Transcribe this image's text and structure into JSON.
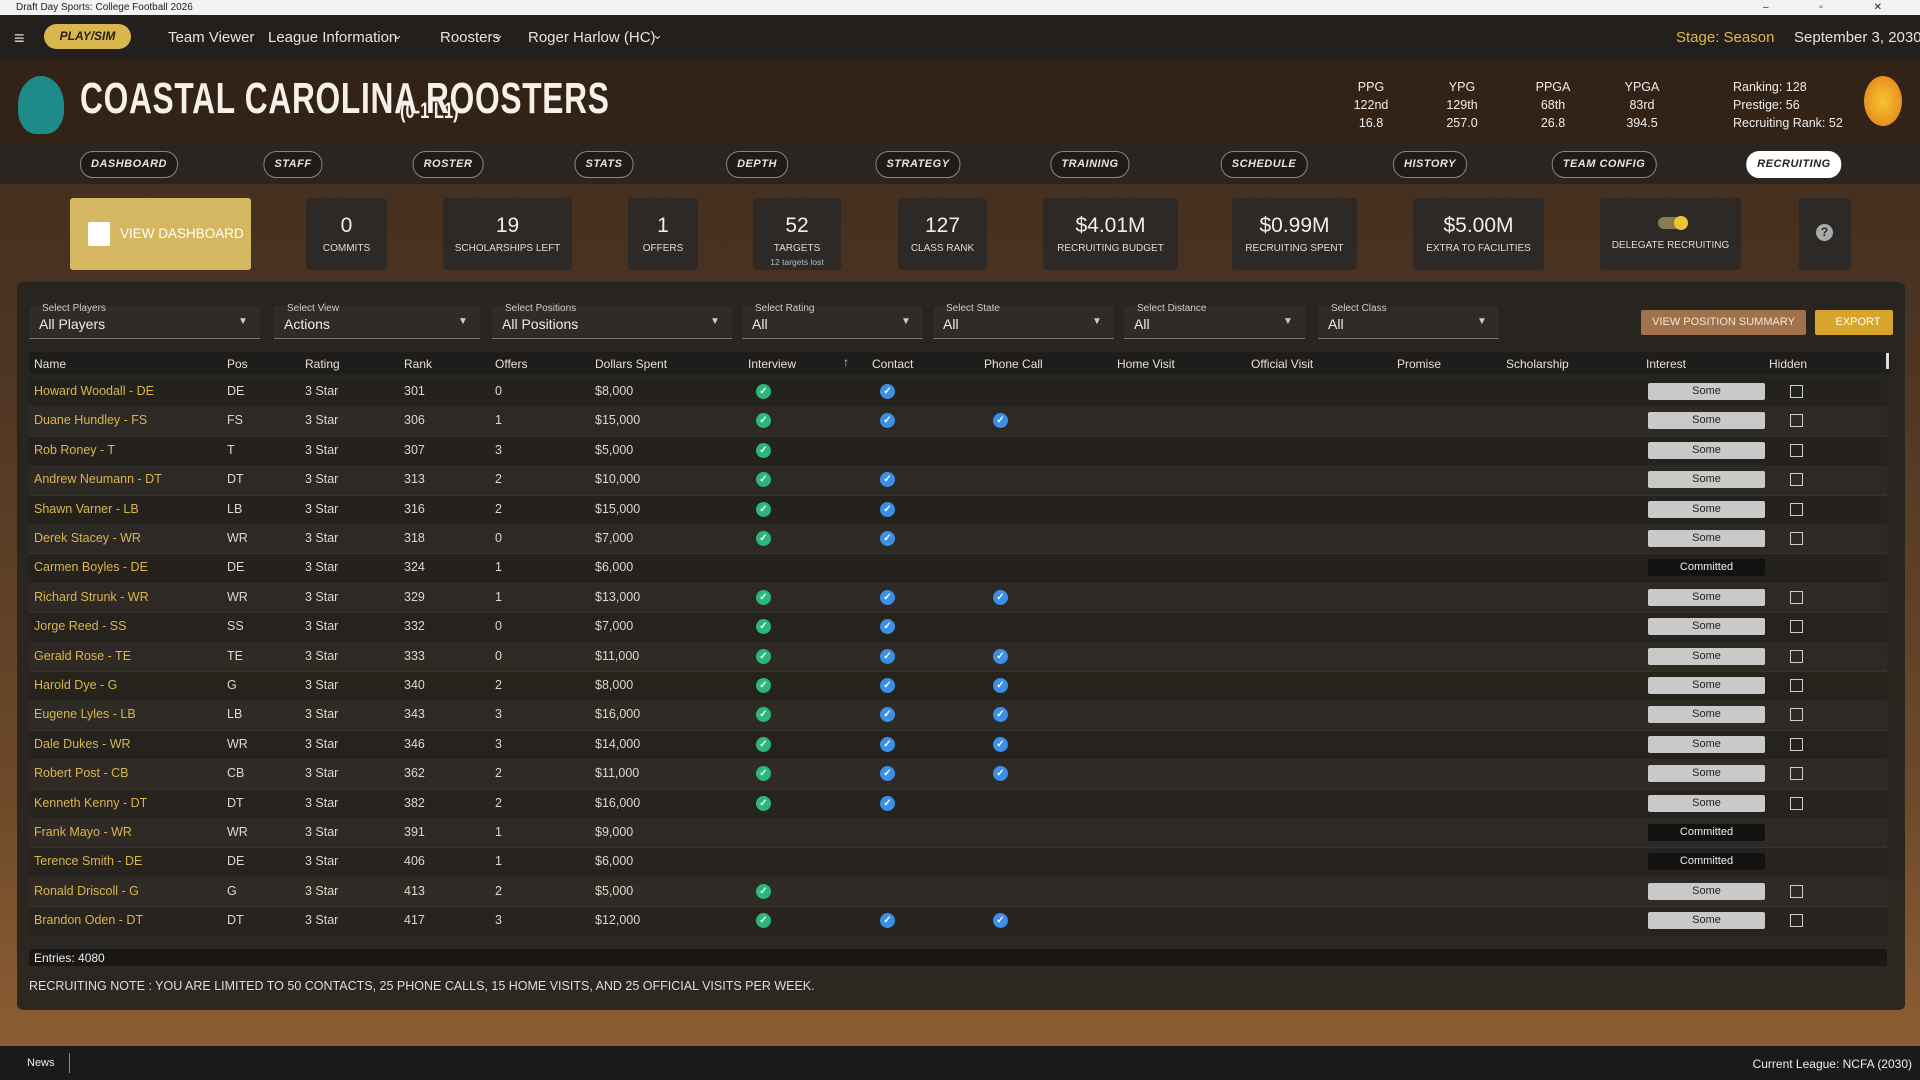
{
  "window_title": "Draft Day Sports: College Football 2026",
  "menu": {
    "play_sim": "PLAY/SIM",
    "items": [
      "Team Viewer",
      "League Information",
      "Roosters",
      "Roger Harlow (HC)"
    ],
    "stage": "Stage: Season",
    "date": "September 3, 2030"
  },
  "team": {
    "name": "COASTAL CAROLINA ROOSTERS",
    "record": "(0-1 L1)"
  },
  "team_stats": [
    {
      "label": "PPG",
      "rank": "122nd",
      "value": "16.8"
    },
    {
      "label": "YPG",
      "rank": "129th",
      "value": "257.0"
    },
    {
      "label": "PPGA",
      "rank": "68th",
      "value": "26.8"
    },
    {
      "label": "YPGA",
      "rank": "83rd",
      "value": "394.5"
    }
  ],
  "ranking": [
    "Ranking: 128",
    "Prestige: 56",
    "Recruiting Rank: 52"
  ],
  "tabs": [
    "DASHBOARD",
    "STAFF",
    "ROSTER",
    "STATS",
    "DEPTH",
    "STRATEGY",
    "TRAINING",
    "SCHEDULE",
    "HISTORY",
    "TEAM CONFIG",
    "RECRUITING"
  ],
  "view_dashboard": "VIEW DASHBOARD",
  "cards": [
    {
      "value": "0",
      "label": "COMMITS"
    },
    {
      "value": "19",
      "label": "SCHOLARSHIPS LEFT"
    },
    {
      "value": "1",
      "label": "OFFERS"
    },
    {
      "value": "52",
      "label": "TARGETS",
      "note": "12 targets lost"
    },
    {
      "value": "127",
      "label": "CLASS RANK"
    },
    {
      "value": "$4.01M",
      "label": "RECRUITING BUDGET"
    },
    {
      "value": "$0.99M",
      "label": "RECRUITING SPENT"
    },
    {
      "value": "$5.00M",
      "label": "EXTRA TO FACILITIES"
    }
  ],
  "delegate": "DELEGATE RECRUITING",
  "filters": [
    {
      "label": "Select Players",
      "value": "All Players"
    },
    {
      "label": "Select View",
      "value": "Actions"
    },
    {
      "label": "Select Positions",
      "value": "All Positions"
    },
    {
      "label": "Select Rating",
      "value": "All"
    },
    {
      "label": "Select State",
      "value": "All"
    },
    {
      "label": "Select Distance",
      "value": "All"
    },
    {
      "label": "Select Class",
      "value": "All"
    }
  ],
  "buttons": [
    "VIEW POSITION SUMMARY",
    "EXPORT"
  ],
  "columns": [
    "Name",
    "Pos",
    "Rating",
    "Rank",
    "Offers",
    "Dollars Spent",
    "Interview",
    "Contact",
    "Phone Call",
    "Home Visit",
    "Official Visit",
    "Promise",
    "Scholarship",
    "Interest",
    "Hidden"
  ],
  "rows": [
    {
      "name": "Howard Woodall - DE",
      "pos": "DE",
      "rating": "3 Star",
      "rank": 301,
      "offers": 0,
      "dollars": "$8,000",
      "interview": true,
      "contact": true,
      "phone": false,
      "interest": "Some",
      "hidden": false
    },
    {
      "name": "Duane Hundley - FS",
      "pos": "FS",
      "rating": "3 Star",
      "rank": 306,
      "offers": 1,
      "dollars": "$15,000",
      "interview": true,
      "contact": true,
      "phone": true,
      "interest": "Some",
      "hidden": false
    },
    {
      "name": "Rob Roney - T",
      "pos": "T",
      "rating": "3 Star",
      "rank": 307,
      "offers": 3,
      "dollars": "$5,000",
      "interview": true,
      "contact": false,
      "phone": false,
      "interest": "Some",
      "hidden": false
    },
    {
      "name": "Andrew Neumann - DT",
      "pos": "DT",
      "rating": "3 Star",
      "rank": 313,
      "offers": 2,
      "dollars": "$10,000",
      "interview": true,
      "contact": true,
      "phone": false,
      "interest": "Some",
      "hidden": false
    },
    {
      "name": "Shawn Varner - LB",
      "pos": "LB",
      "rating": "3 Star",
      "rank": 316,
      "offers": 2,
      "dollars": "$15,000",
      "interview": true,
      "contact": true,
      "phone": false,
      "interest": "Some",
      "hidden": false
    },
    {
      "name": "Derek Stacey - WR",
      "pos": "WR",
      "rating": "3 Star",
      "rank": 318,
      "offers": 0,
      "dollars": "$7,000",
      "interview": true,
      "contact": true,
      "phone": false,
      "interest": "Some",
      "hidden": false
    },
    {
      "name": "Carmen Boyles - DE",
      "pos": "DE",
      "rating": "3 Star",
      "rank": 324,
      "offers": 1,
      "dollars": "$6,000",
      "interview": false,
      "contact": false,
      "phone": false,
      "interest": "Committed",
      "hidden": null
    },
    {
      "name": "Richard Strunk - WR",
      "pos": "WR",
      "rating": "3 Star",
      "rank": 329,
      "offers": 1,
      "dollars": "$13,000",
      "interview": true,
      "contact": true,
      "phone": true,
      "interest": "Some",
      "hidden": false
    },
    {
      "name": "Jorge Reed - SS",
      "pos": "SS",
      "rating": "3 Star",
      "rank": 332,
      "offers": 0,
      "dollars": "$7,000",
      "interview": true,
      "contact": true,
      "phone": false,
      "interest": "Some",
      "hidden": false
    },
    {
      "name": "Gerald Rose - TE",
      "pos": "TE",
      "rating": "3 Star",
      "rank": 333,
      "offers": 0,
      "dollars": "$11,000",
      "interview": true,
      "contact": true,
      "phone": true,
      "interest": "Some",
      "hidden": false
    },
    {
      "name": "Harold Dye - G",
      "pos": "G",
      "rating": "3 Star",
      "rank": 340,
      "offers": 2,
      "dollars": "$8,000",
      "interview": true,
      "contact": true,
      "phone": true,
      "interest": "Some",
      "hidden": false
    },
    {
      "name": "Eugene Lyles - LB",
      "pos": "LB",
      "rating": "3 Star",
      "rank": 343,
      "offers": 3,
      "dollars": "$16,000",
      "interview": true,
      "contact": true,
      "phone": true,
      "interest": "Some",
      "hidden": false
    },
    {
      "name": "Dale Dukes - WR",
      "pos": "WR",
      "rating": "3 Star",
      "rank": 346,
      "offers": 3,
      "dollars": "$14,000",
      "interview": true,
      "contact": true,
      "phone": true,
      "interest": "Some",
      "hidden": false
    },
    {
      "name": "Robert Post - CB",
      "pos": "CB",
      "rating": "3 Star",
      "rank": 362,
      "offers": 2,
      "dollars": "$11,000",
      "interview": true,
      "contact": true,
      "phone": true,
      "interest": "Some",
      "hidden": false
    },
    {
      "name": "Kenneth Kenny - DT",
      "pos": "DT",
      "rating": "3 Star",
      "rank": 382,
      "offers": 2,
      "dollars": "$16,000",
      "interview": true,
      "contact": true,
      "phone": false,
      "interest": "Some",
      "hidden": false
    },
    {
      "name": "Frank Mayo - WR",
      "pos": "WR",
      "rating": "3 Star",
      "rank": 391,
      "offers": 1,
      "dollars": "$9,000",
      "interview": false,
      "contact": false,
      "phone": false,
      "interest": "Committed",
      "hidden": null
    },
    {
      "name": "Terence Smith - DE",
      "pos": "DE",
      "rating": "3 Star",
      "rank": 406,
      "offers": 1,
      "dollars": "$6,000",
      "interview": false,
      "contact": false,
      "phone": false,
      "interest": "Committed",
      "hidden": null
    },
    {
      "name": "Ronald Driscoll - G",
      "pos": "G",
      "rating": "3 Star",
      "rank": 413,
      "offers": 2,
      "dollars": "$5,000",
      "interview": true,
      "contact": false,
      "phone": false,
      "interest": "Some",
      "hidden": false
    },
    {
      "name": "Brandon Oden - DT",
      "pos": "DT",
      "rating": "3 Star",
      "rank": 417,
      "offers": 3,
      "dollars": "$12,000",
      "interview": true,
      "contact": true,
      "phone": true,
      "interest": "Some",
      "hidden": false
    }
  ],
  "entries": "Entries: 4080",
  "note": "RECRUITING NOTE : YOU ARE LIMITED TO 50 CONTACTS, 25 PHONE CALLS, 15 HOME VISITS, AND 25 OFFICIAL VISITS PER WEEK.",
  "footer": {
    "news": "News",
    "league": "Current League: NCFA (2030)"
  }
}
